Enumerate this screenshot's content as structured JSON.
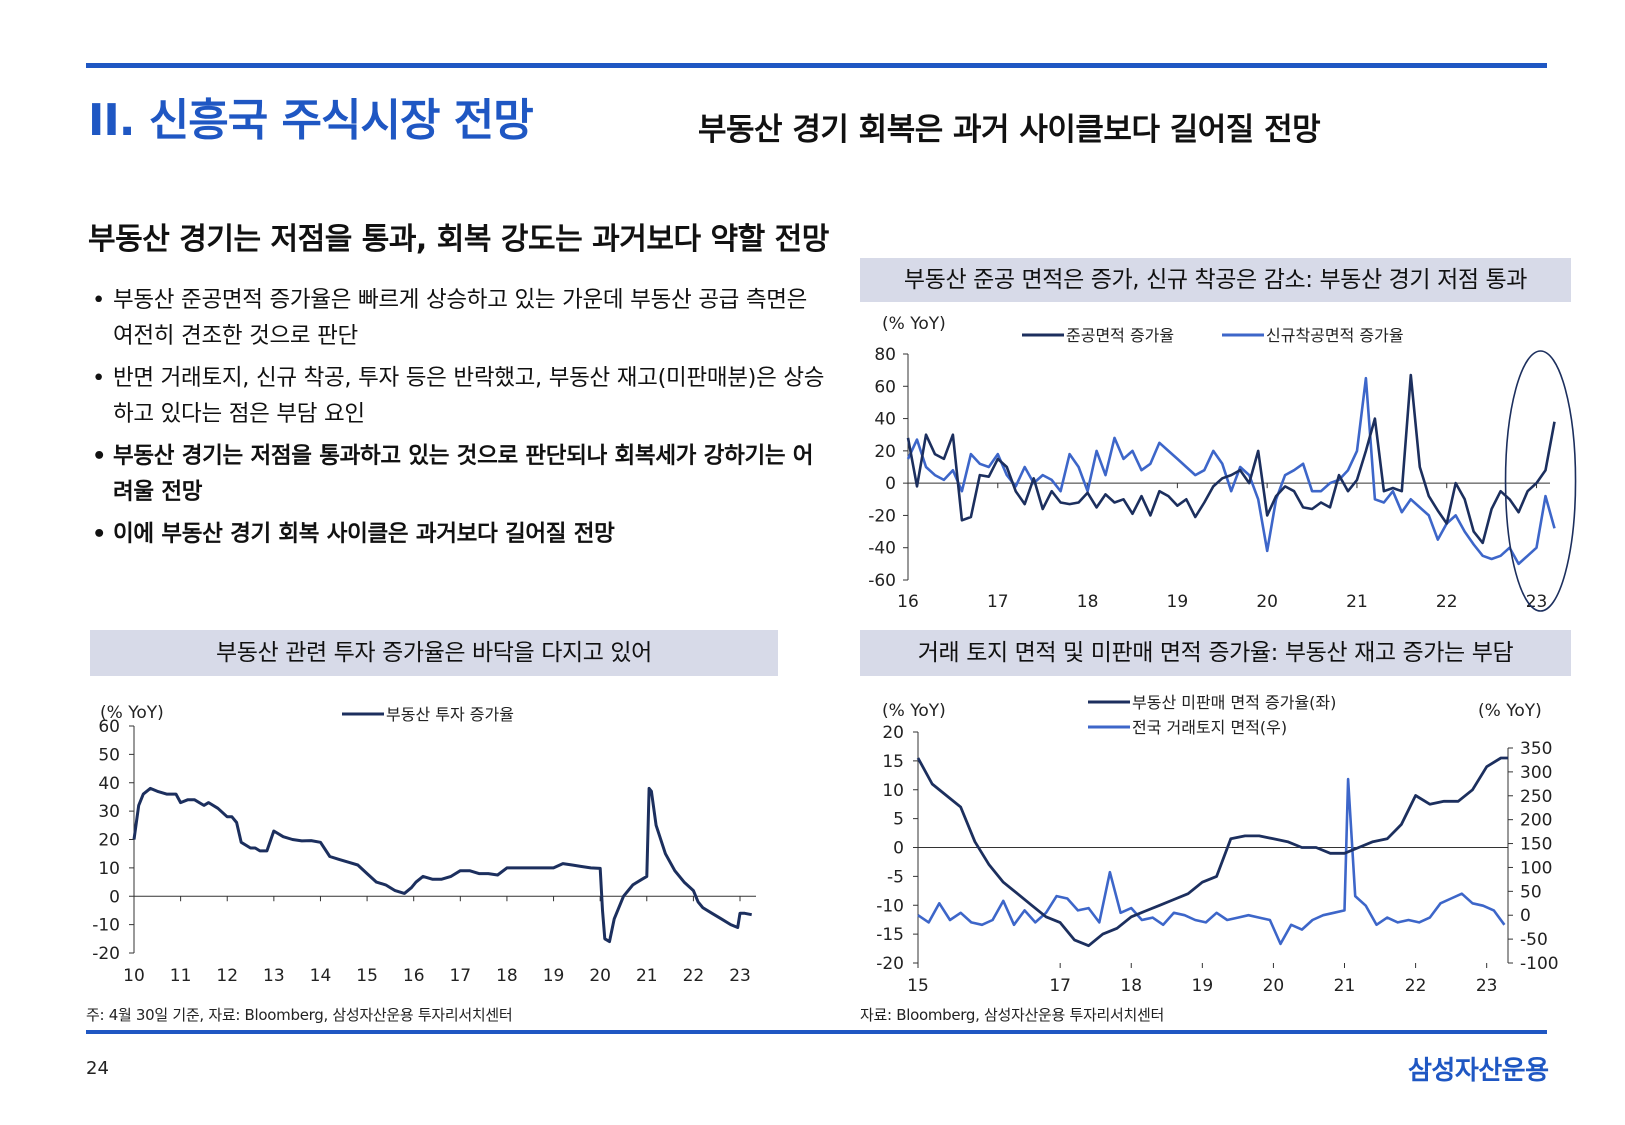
{
  "header": {
    "section_title": "II. 신흥국 주식시장 전망",
    "headline": "부동산 경기 회복은 과거 사이클보다 길어질 전망"
  },
  "main": {
    "heading": "부동산 경기는 저점을 통과, 회복 강도는 과거보다 약할 전망",
    "bullets": [
      "부동산 준공면적 증가율은 빠르게 상승하고 있는 가운데 부동산 공급 측면은 여전히 견조한 것으로 판단",
      "반면 거래토지, 신규 착공, 투자 등은 반락했고, 부동산 재고(미판매분)은 상승하고 있다는 점은 부담 요인",
      "부동산 경기는 저점을 통과하고 있는 것으로 판단되나 회복세가 강하기는 어려울 전망",
      "이에 부동산 경기 회복 사이클은 과거보다 길어질 전망"
    ]
  },
  "colors": {
    "accent": "#1f57c3",
    "dark_series": "#1c2f5e",
    "light_series": "#3d66c9",
    "header_band": "#d7dae8"
  },
  "chart_data": [
    {
      "id": "completions_vs_starts",
      "type": "line",
      "title": "부동산 준공 면적은 증가, 신규 착공은 감소: 부동산 경기 저점 통과",
      "ylabel": "(% YoY)",
      "ylim": [
        -60,
        80
      ],
      "yticks": [
        80,
        60,
        40,
        20,
        0,
        -20,
        -40,
        -60
      ],
      "xlim": [
        16,
        23.15
      ],
      "xticks": [
        "16",
        "17",
        "18",
        "19",
        "20",
        "21",
        "22",
        "23"
      ],
      "annotation": "ellipse highlighting 2023",
      "series": [
        {
          "name": "준공면적 증가율",
          "color": "#1c2f5e",
          "x": [
            16.0,
            16.1,
            16.2,
            16.3,
            16.4,
            16.5,
            16.6,
            16.7,
            16.8,
            16.9,
            17.0,
            17.1,
            17.2,
            17.3,
            17.4,
            17.5,
            17.6,
            17.7,
            17.8,
            17.9,
            18.0,
            18.1,
            18.2,
            18.3,
            18.4,
            18.5,
            18.6,
            18.7,
            18.8,
            18.9,
            19.0,
            19.1,
            19.2,
            19.3,
            19.4,
            19.5,
            19.6,
            19.7,
            19.8,
            19.9,
            20.0,
            20.1,
            20.2,
            20.3,
            20.4,
            20.5,
            20.6,
            20.7,
            20.8,
            20.9,
            21.0,
            21.1,
            21.2,
            21.3,
            21.4,
            21.5,
            21.6,
            21.7,
            21.8,
            21.9,
            22.0,
            22.1,
            22.2,
            22.3,
            22.4,
            22.5,
            22.6,
            22.7,
            22.8,
            22.9,
            23.0,
            23.1,
            23.2
          ],
          "values": [
            28,
            -2,
            30,
            18,
            15,
            30,
            -23,
            -21,
            5,
            4,
            15,
            10,
            -5,
            -13,
            3,
            -16,
            -5,
            -12,
            -13,
            -12,
            -6,
            -15,
            -7,
            -12,
            -10,
            -19,
            -8,
            -20,
            -5,
            -8,
            -14,
            -10,
            -21,
            -12,
            -2,
            3,
            5,
            8,
            0,
            20,
            -20,
            -8,
            -2,
            -5,
            -15,
            -16,
            -12,
            -15,
            5,
            -5,
            2,
            20,
            40,
            -5,
            -3,
            -5,
            67,
            10,
            -8,
            -17,
            -25,
            0,
            -10,
            -30,
            -37,
            -16,
            -5,
            -10,
            -18,
            -5,
            0,
            8,
            38
          ]
        },
        {
          "name": "신규착공면적 증가율",
          "color": "#3d66c9",
          "x": [
            16.0,
            16.1,
            16.2,
            16.3,
            16.4,
            16.5,
            16.6,
            16.7,
            16.8,
            16.9,
            17.0,
            17.1,
            17.2,
            17.3,
            17.4,
            17.5,
            17.6,
            17.7,
            17.8,
            17.9,
            18.0,
            18.1,
            18.2,
            18.3,
            18.4,
            18.5,
            18.6,
            18.7,
            18.8,
            18.9,
            19.0,
            19.1,
            19.2,
            19.3,
            19.4,
            19.5,
            19.6,
            19.7,
            19.8,
            19.9,
            20.0,
            20.1,
            20.2,
            20.3,
            20.4,
            20.5,
            20.6,
            20.7,
            20.8,
            20.9,
            21.0,
            21.1,
            21.2,
            21.3,
            21.4,
            21.5,
            21.6,
            21.7,
            21.8,
            21.9,
            22.0,
            22.1,
            22.2,
            22.3,
            22.4,
            22.5,
            22.6,
            22.7,
            22.8,
            22.9,
            23.0,
            23.1,
            23.2
          ],
          "values": [
            15,
            27,
            10,
            5,
            2,
            8,
            -5,
            18,
            12,
            10,
            18,
            5,
            -2,
            10,
            0,
            5,
            2,
            -5,
            18,
            10,
            -5,
            20,
            5,
            28,
            15,
            20,
            8,
            12,
            25,
            20,
            15,
            10,
            5,
            8,
            20,
            12,
            -5,
            10,
            5,
            -10,
            -42,
            -10,
            5,
            8,
            12,
            -5,
            -5,
            0,
            2,
            8,
            20,
            65,
            -10,
            -12,
            -5,
            -18,
            -10,
            -15,
            -20,
            -35,
            -25,
            -20,
            -30,
            -38,
            -45,
            -47,
            -45,
            -40,
            -50,
            -45,
            -40,
            -8,
            -28
          ]
        }
      ]
    },
    {
      "id": "real_estate_investment",
      "type": "line",
      "title": "부동산 관련 투자 증가율은 바닥을 다지고 있어",
      "ylabel": "(% YoY)",
      "ylim": [
        -20,
        60
      ],
      "yticks": [
        60,
        50,
        40,
        30,
        20,
        10,
        0,
        -10,
        -20
      ],
      "xlim": [
        10,
        23.3
      ],
      "xticks": [
        "10",
        "11",
        "12",
        "13",
        "14",
        "15",
        "16",
        "17",
        "18",
        "19",
        "20",
        "21",
        "22",
        "23"
      ],
      "series": [
        {
          "name": "부동산 투자 증가율",
          "color": "#1c2f5e",
          "x": [
            10.0,
            10.1,
            10.2,
            10.35,
            10.5,
            10.7,
            10.9,
            11.0,
            11.15,
            11.3,
            11.5,
            11.6,
            11.8,
            12.0,
            12.1,
            12.2,
            12.3,
            12.5,
            12.6,
            12.7,
            12.85,
            13.0,
            13.2,
            13.4,
            13.6,
            13.8,
            14.0,
            14.2,
            14.4,
            14.6,
            14.8,
            15.0,
            15.2,
            15.4,
            15.6,
            15.8,
            15.95,
            16.05,
            16.2,
            16.4,
            16.6,
            16.8,
            17.0,
            17.2,
            17.4,
            17.6,
            17.8,
            18.0,
            18.2,
            18.4,
            18.6,
            18.8,
            19.0,
            19.2,
            19.4,
            19.6,
            19.8,
            20.0,
            20.05,
            20.1,
            20.2,
            20.3,
            20.5,
            20.7,
            20.9,
            21.0,
            21.05,
            21.1,
            21.2,
            21.4,
            21.6,
            21.8,
            22.0,
            22.1,
            22.2,
            22.4,
            22.6,
            22.8,
            22.95,
            23.0,
            23.1,
            23.25
          ],
          "values": [
            20,
            32,
            36,
            38,
            37,
            36,
            36,
            33,
            34,
            34,
            32,
            33,
            31,
            28,
            28,
            26,
            19,
            17,
            17,
            16,
            16,
            23,
            21,
            20,
            19.5,
            19.6,
            19,
            14,
            13,
            12,
            11,
            8,
            5,
            4,
            2,
            1,
            3,
            5,
            7,
            6,
            6,
            7,
            9,
            9,
            8,
            8,
            7.5,
            10,
            10,
            10,
            10,
            10,
            10,
            11.5,
            11,
            10.5,
            10,
            9.8,
            -5,
            -15,
            -16,
            -8,
            0,
            4,
            6,
            7,
            38,
            37,
            25,
            15,
            9,
            5,
            2,
            -2,
            -4,
            -6,
            -8,
            -10,
            -11,
            -6,
            -6,
            -6.5
          ]
        }
      ]
    },
    {
      "id": "land_and_unsold_inventory",
      "type": "line",
      "title": "거래 토지 면적 및 미판매 면적 증가율: 부동산 재고 증가는 부담",
      "ylabel_left": "(% YoY)",
      "ylabel_right": "(% YoY)",
      "ylim_left": [
        -20,
        20
      ],
      "ylim_right": [
        -100,
        350
      ],
      "yticks_left": [
        20,
        15,
        10,
        5,
        0,
        -5,
        -10,
        -15,
        -20
      ],
      "yticks_right": [
        350,
        300,
        250,
        200,
        150,
        100,
        50,
        0,
        -50,
        -100
      ],
      "xlim": [
        15,
        23.3
      ],
      "xticks": [
        "15",
        "17",
        "18",
        "19",
        "20",
        "21",
        "22",
        "23"
      ],
      "series": [
        {
          "name": "부동산 미판매 면적 증가율(좌)",
          "axis": "left",
          "color": "#1c2f5e",
          "x": [
            15.0,
            15.2,
            15.4,
            15.6,
            15.8,
            16.0,
            16.2,
            16.4,
            16.6,
            16.8,
            17.0,
            17.2,
            17.4,
            17.6,
            17.8,
            18.0,
            18.2,
            18.4,
            18.6,
            18.8,
            19.0,
            19.2,
            19.4,
            19.6,
            19.8,
            20.0,
            20.2,
            20.4,
            20.6,
            20.8,
            21.0,
            21.2,
            21.4,
            21.6,
            21.8,
            22.0,
            22.2,
            22.4,
            22.6,
            22.8,
            23.0,
            23.2,
            23.3
          ],
          "values": [
            15.5,
            11,
            9,
            7,
            1,
            -3,
            -6,
            -8,
            -10,
            -12,
            -13,
            -16,
            -17,
            -15,
            -14,
            -12,
            -11,
            -10,
            -9,
            -8,
            -6,
            -5,
            1.5,
            2,
            2,
            1.5,
            1,
            0,
            0,
            -1,
            -1,
            0,
            1,
            1.5,
            4,
            9,
            7.5,
            8,
            8,
            10,
            14,
            15.5,
            15.5
          ]
        },
        {
          "name": "전국 거래토지 면적(우)",
          "axis": "right",
          "color": "#3d66c9",
          "x": [
            15.0,
            15.15,
            15.3,
            15.45,
            15.6,
            15.75,
            15.9,
            16.05,
            16.2,
            16.35,
            16.5,
            16.65,
            16.8,
            16.95,
            17.1,
            17.25,
            17.4,
            17.55,
            17.7,
            17.85,
            18.0,
            18.15,
            18.3,
            18.45,
            18.6,
            18.75,
            18.9,
            19.05,
            19.2,
            19.35,
            19.5,
            19.65,
            19.8,
            19.95,
            20.1,
            20.25,
            20.4,
            20.55,
            20.7,
            20.85,
            21.0,
            21.05,
            21.15,
            21.3,
            21.45,
            21.6,
            21.75,
            21.9,
            22.05,
            22.2,
            22.35,
            22.5,
            22.65,
            22.8,
            22.95,
            23.1,
            23.25
          ],
          "values": [
            0,
            -15,
            25,
            -10,
            5,
            -15,
            -20,
            -10,
            30,
            -20,
            10,
            -15,
            5,
            40,
            35,
            10,
            15,
            -15,
            90,
            5,
            15,
            -10,
            -5,
            -20,
            5,
            0,
            -10,
            -15,
            5,
            -10,
            -5,
            0,
            -5,
            -10,
            -60,
            -20,
            -30,
            -10,
            0,
            5,
            10,
            285,
            40,
            20,
            -20,
            -5,
            -15,
            -10,
            -15,
            -5,
            25,
            35,
            45,
            25,
            20,
            10,
            -20
          ]
        }
      ]
    }
  ],
  "notes": {
    "left": "주: 4월 30일 기준, 자료: Bloomberg, 삼성자산운용 투자리서치센터",
    "right": "자료: Bloomberg, 삼성자산운용 투자리서치센터"
  },
  "footer": {
    "page_number": "24",
    "company": "삼성자산운용"
  }
}
